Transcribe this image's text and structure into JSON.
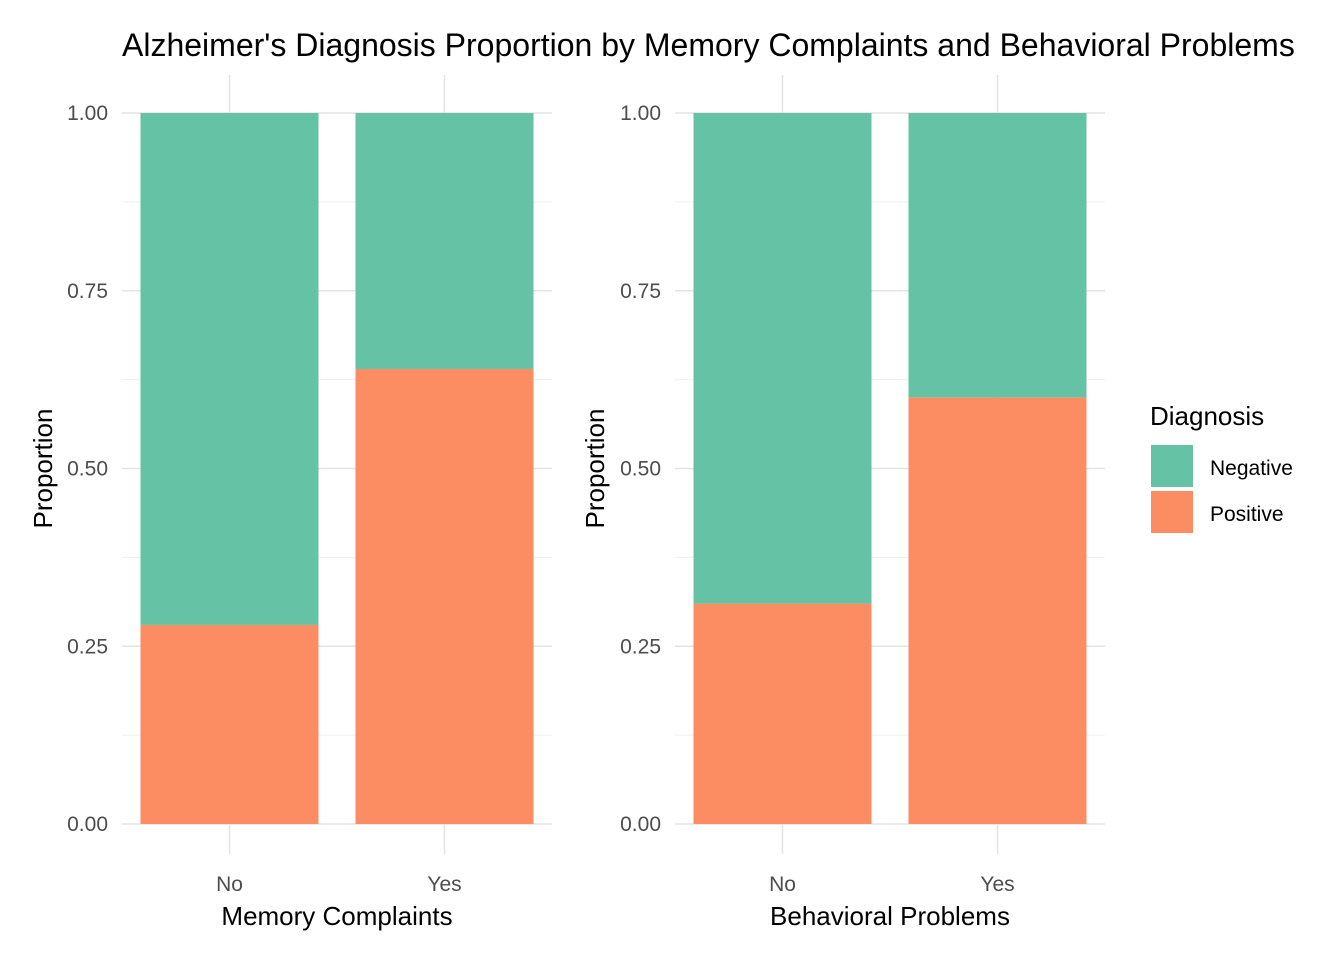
{
  "title": "Alzheimer's Diagnosis Proportion by Memory Complaints and Behavioral Problems",
  "legend": {
    "title": "Diagnosis",
    "position": "right",
    "items": [
      {
        "label": "Negative",
        "color": "#66C2A5"
      },
      {
        "label": "Positive",
        "color": "#FC8D62"
      }
    ]
  },
  "chart_data": [
    {
      "type": "bar",
      "stacked": true,
      "categories": [
        "No",
        "Yes"
      ],
      "series": [
        {
          "name": "Negative",
          "values": [
            0.72,
            0.36
          ]
        },
        {
          "name": "Positive",
          "values": [
            0.28,
            0.64
          ]
        }
      ],
      "xlabel": "Memory Complaints",
      "ylabel": "Proportion",
      "ylim": [
        0,
        1
      ],
      "yticks": [
        "0.00",
        "0.25",
        "0.50",
        "0.75",
        "1.00"
      ],
      "grid": true
    },
    {
      "type": "bar",
      "stacked": true,
      "categories": [
        "No",
        "Yes"
      ],
      "series": [
        {
          "name": "Negative",
          "values": [
            0.69,
            0.4
          ]
        },
        {
          "name": "Positive",
          "values": [
            0.31,
            0.6
          ]
        }
      ],
      "xlabel": "Behavioral Problems",
      "ylabel": "Proportion",
      "ylim": [
        0,
        1
      ],
      "yticks": [
        "0.00",
        "0.25",
        "0.50",
        "0.75",
        "1.00"
      ],
      "grid": true
    }
  ]
}
